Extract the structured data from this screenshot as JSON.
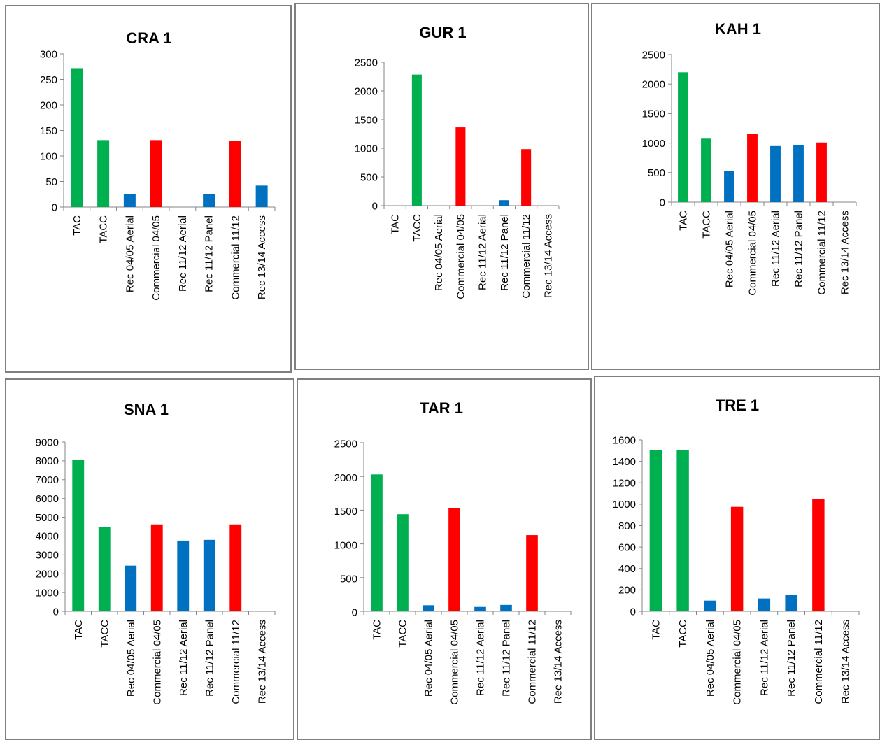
{
  "colors": {
    "green": "#00b050",
    "red": "#ff0000",
    "blue": "#0070c0"
  },
  "chart_data": [
    {
      "type": "bar",
      "title": "CRA 1",
      "categories": [
        "TAC",
        "TACC",
        "Rec 04/05 Aerial",
        "Commercial 04/05",
        "Rec 11/12 Aerial",
        "Rec 11/12 Panel",
        "Commercial 11/12",
        "Rec 13/14 Access"
      ],
      "values": [
        272,
        131,
        25,
        131,
        0,
        25,
        130,
        42
      ],
      "bar_colors": [
        "green",
        "green",
        "blue",
        "red",
        "blue",
        "blue",
        "red",
        "blue"
      ],
      "yticks": [
        "0",
        "50",
        "100",
        "150",
        "200",
        "250",
        "300"
      ],
      "ylim": [
        0,
        300
      ],
      "grid": false,
      "legend": "none"
    },
    {
      "type": "bar",
      "title": "GUR 1",
      "categories": [
        "TAC",
        "TACC",
        "Rec 04/05 Aerial",
        "Commercial 04/05",
        "Rec 11/12 Aerial",
        "Rec 11/12 Panel",
        "Commercial 11/12",
        "Rec 13/14 Access"
      ],
      "values": [
        0,
        2285,
        0,
        1365,
        0,
        95,
        985,
        0
      ],
      "bar_colors": [
        "green",
        "green",
        "blue",
        "red",
        "blue",
        "blue",
        "red",
        "blue"
      ],
      "yticks": [
        "0",
        "500",
        "1000",
        "1500",
        "2000",
        "2500"
      ],
      "ylim": [
        0,
        2500
      ],
      "grid": false,
      "legend": "none"
    },
    {
      "type": "bar",
      "title": "KAH 1",
      "categories": [
        "TAC",
        "TACC",
        "Rec 04/05 Aerial",
        "Commercial 04/05",
        "Rec 11/12 Aerial",
        "Rec 11/12 Panel",
        "Commercial 11/12",
        "Rec 13/14 Access"
      ],
      "values": [
        2200,
        1075,
        530,
        1150,
        950,
        960,
        1010,
        0
      ],
      "bar_colors": [
        "green",
        "green",
        "blue",
        "red",
        "blue",
        "blue",
        "red",
        "blue"
      ],
      "yticks": [
        "0",
        "500",
        "1000",
        "1500",
        "2000",
        "2500"
      ],
      "ylim": [
        0,
        2500
      ],
      "grid": false,
      "legend": "none"
    },
    {
      "type": "bar",
      "title": "SNA 1",
      "categories": [
        "TAC",
        "TACC",
        "Rec 04/05 Aerial",
        "Commercial 04/05",
        "Rec 11/12 Aerial",
        "Rec 11/12 Panel",
        "Commercial 11/12",
        "Rec 13/14 Access"
      ],
      "values": [
        8050,
        4500,
        2430,
        4620,
        3760,
        3800,
        4620,
        0
      ],
      "bar_colors": [
        "green",
        "green",
        "blue",
        "red",
        "blue",
        "blue",
        "red",
        "blue"
      ],
      "yticks": [
        "0",
        "1000",
        "2000",
        "3000",
        "4000",
        "5000",
        "6000",
        "7000",
        "8000",
        "9000"
      ],
      "ylim": [
        0,
        9000
      ],
      "grid": false,
      "legend": "none"
    },
    {
      "type": "bar",
      "title": "TAR 1",
      "categories": [
        "TAC",
        "TACC",
        "Rec 04/05 Aerial",
        "Commercial 04/05",
        "Rec 11/12 Aerial",
        "Rec 11/12 Panel",
        "Commercial 11/12",
        "Rec 13/14 Access"
      ],
      "values": [
        2030,
        1440,
        90,
        1525,
        65,
        95,
        1130,
        0
      ],
      "bar_colors": [
        "green",
        "green",
        "blue",
        "red",
        "blue",
        "blue",
        "red",
        "blue"
      ],
      "yticks": [
        "0",
        "500",
        "1000",
        "1500",
        "2000",
        "2500"
      ],
      "ylim": [
        0,
        2500
      ],
      "grid": false,
      "legend": "none"
    },
    {
      "type": "bar",
      "title": "TRE 1",
      "categories": [
        "TAC",
        "TACC",
        "Rec 04/05 Aerial",
        "Commercial 04/05",
        "Rec 11/12 Aerial",
        "Rec 11/12 Panel",
        "Commercial 11/12",
        "Rec 13/14 Access"
      ],
      "values": [
        1505,
        1505,
        100,
        975,
        120,
        155,
        1050,
        0
      ],
      "bar_colors": [
        "green",
        "green",
        "blue",
        "red",
        "blue",
        "blue",
        "red",
        "blue"
      ],
      "yticks": [
        "0",
        "200",
        "400",
        "600",
        "800",
        "1000",
        "1200",
        "1400",
        "1600"
      ],
      "ylim": [
        0,
        1600
      ],
      "grid": false,
      "legend": "none"
    }
  ]
}
